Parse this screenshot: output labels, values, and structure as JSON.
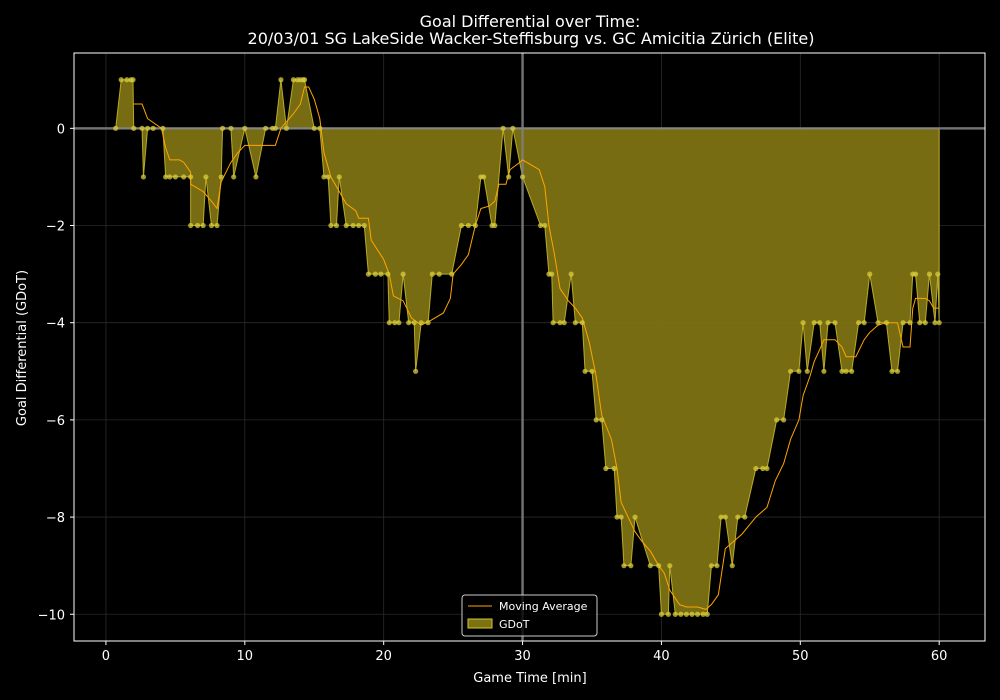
{
  "chart_data": {
    "type": "area",
    "title_line1": "Goal Differential over Time:",
    "title_line2": "20/03/01 SG LakeSide Wacker-Steffisburg  vs.  GC Amicitia Zürich (Elite)",
    "xlabel": "Game Time [min]",
    "ylabel": "Goal Differential (GDoT)",
    "xlim": [
      -2.3,
      63.3
    ],
    "ylim": [
      -10.55,
      1.55
    ],
    "x_ticks": [
      0,
      10,
      20,
      30,
      40,
      50,
      60
    ],
    "y_ticks": [
      0,
      -2,
      -4,
      -6,
      -8,
      -10
    ],
    "y_tick_labels": [
      "0",
      "−2",
      "−4",
      "−6",
      "−8",
      "−10"
    ],
    "x_tick_labels": [
      "0",
      "10",
      "20",
      "30",
      "40",
      "50",
      "60"
    ],
    "grid": true,
    "zero_line": true,
    "halftime_line_x": 30,
    "legend_position": "bottom-center",
    "colors": {
      "background": "#000000",
      "fill": "#7d7212",
      "fill_edge": "#d4c531",
      "points": "#d8cc3c",
      "moving_average": "#ffa500",
      "grid": "#2a2a2a",
      "axes": "#ffffff",
      "reference_lines": "#808080"
    },
    "series": [
      {
        "name": "GDoT",
        "points": [
          [
            0.7,
            0
          ],
          [
            1.1,
            1
          ],
          [
            1.5,
            1
          ],
          [
            1.8,
            1
          ],
          [
            1.95,
            1
          ],
          [
            2.0,
            0
          ],
          [
            2.6,
            0
          ],
          [
            2.7,
            -1
          ],
          [
            3.0,
            0
          ],
          [
            3.4,
            0
          ],
          [
            4.1,
            0
          ],
          [
            4.3,
            -1
          ],
          [
            4.6,
            -1
          ],
          [
            5.0,
            -1
          ],
          [
            5.6,
            -1
          ],
          [
            6.1,
            -1
          ],
          [
            6.1,
            -2
          ],
          [
            6.6,
            -2
          ],
          [
            7.0,
            -2
          ],
          [
            7.2,
            -1
          ],
          [
            7.6,
            -2
          ],
          [
            8.0,
            -2
          ],
          [
            8.3,
            -1
          ],
          [
            8.4,
            0
          ],
          [
            9.0,
            0
          ],
          [
            9.2,
            -1
          ],
          [
            10.0,
            0
          ],
          [
            10.8,
            -1
          ],
          [
            11.5,
            0
          ],
          [
            12.0,
            0
          ],
          [
            12.2,
            0
          ],
          [
            12.6,
            1
          ],
          [
            13.0,
            0
          ],
          [
            13.5,
            1
          ],
          [
            13.8,
            1
          ],
          [
            14.0,
            1
          ],
          [
            14.2,
            1
          ],
          [
            14.3,
            1
          ],
          [
            15.0,
            0
          ],
          [
            15.4,
            0
          ],
          [
            15.7,
            -1
          ],
          [
            16.0,
            -1
          ],
          [
            16.2,
            -2
          ],
          [
            16.6,
            -2
          ],
          [
            16.8,
            -1
          ],
          [
            17.3,
            -2
          ],
          [
            17.8,
            -2
          ],
          [
            18.2,
            -2
          ],
          [
            18.6,
            -2
          ],
          [
            18.9,
            -3
          ],
          [
            19.4,
            -3
          ],
          [
            19.8,
            -3
          ],
          [
            20.3,
            -3
          ],
          [
            20.4,
            -4
          ],
          [
            20.8,
            -4
          ],
          [
            21.1,
            -4
          ],
          [
            21.4,
            -3
          ],
          [
            21.8,
            -4
          ],
          [
            22.2,
            -4
          ],
          [
            22.3,
            -5
          ],
          [
            22.7,
            -4
          ],
          [
            23.2,
            -4
          ],
          [
            23.5,
            -3
          ],
          [
            24.0,
            -3
          ],
          [
            24.9,
            -3
          ],
          [
            25.6,
            -2
          ],
          [
            26.1,
            -2
          ],
          [
            26.6,
            -2
          ],
          [
            27.0,
            -1
          ],
          [
            27.2,
            -1
          ],
          [
            27.8,
            -2
          ],
          [
            28.0,
            -2
          ],
          [
            28.6,
            0
          ],
          [
            29.0,
            -1
          ],
          [
            29.3,
            0
          ],
          [
            30.0,
            -1
          ],
          [
            31.3,
            -2
          ],
          [
            31.6,
            -2
          ],
          [
            31.9,
            -3
          ],
          [
            32.1,
            -3
          ],
          [
            32.2,
            -4
          ],
          [
            32.7,
            -4
          ],
          [
            33.0,
            -4
          ],
          [
            33.5,
            -3
          ],
          [
            33.8,
            -4
          ],
          [
            34.3,
            -4
          ],
          [
            34.5,
            -5
          ],
          [
            35.0,
            -5
          ],
          [
            35.3,
            -6
          ],
          [
            35.7,
            -6
          ],
          [
            36.0,
            -7
          ],
          [
            36.6,
            -7
          ],
          [
            36.8,
            -8
          ],
          [
            37.1,
            -8
          ],
          [
            37.3,
            -9
          ],
          [
            37.8,
            -9
          ],
          [
            38.1,
            -8
          ],
          [
            39.2,
            -9
          ],
          [
            39.8,
            -9
          ],
          [
            40.0,
            -10
          ],
          [
            40.5,
            -10
          ],
          [
            40.6,
            -9
          ],
          [
            41.0,
            -10
          ],
          [
            41.4,
            -10
          ],
          [
            41.8,
            -10
          ],
          [
            42.2,
            -10
          ],
          [
            42.6,
            -10
          ],
          [
            43.0,
            -10
          ],
          [
            43.3,
            -10
          ],
          [
            43.6,
            -9
          ],
          [
            44.0,
            -9
          ],
          [
            44.3,
            -8
          ],
          [
            44.6,
            -8
          ],
          [
            45.1,
            -9
          ],
          [
            45.5,
            -8
          ],
          [
            46.0,
            -8
          ],
          [
            46.8,
            -7
          ],
          [
            47.3,
            -7
          ],
          [
            47.6,
            -7
          ],
          [
            48.3,
            -6
          ],
          [
            48.8,
            -6
          ],
          [
            49.3,
            -5
          ],
          [
            49.9,
            -5
          ],
          [
            50.2,
            -4
          ],
          [
            50.5,
            -5
          ],
          [
            51.0,
            -4
          ],
          [
            51.4,
            -4
          ],
          [
            51.7,
            -5
          ],
          [
            52.0,
            -4
          ],
          [
            52.5,
            -4
          ],
          [
            53.0,
            -5
          ],
          [
            53.3,
            -5
          ],
          [
            53.7,
            -5
          ],
          [
            54.2,
            -4
          ],
          [
            54.6,
            -4
          ],
          [
            55.0,
            -3
          ],
          [
            55.6,
            -4
          ],
          [
            56.2,
            -4
          ],
          [
            56.6,
            -5
          ],
          [
            57.0,
            -5
          ],
          [
            57.4,
            -4
          ],
          [
            57.9,
            -4
          ],
          [
            58.1,
            -3
          ],
          [
            58.3,
            -3
          ],
          [
            58.6,
            -4
          ],
          [
            59.0,
            -4
          ],
          [
            59.3,
            -3
          ],
          [
            59.7,
            -4
          ],
          [
            59.9,
            -3
          ],
          [
            60.0,
            -4
          ]
        ]
      },
      {
        "name": "Moving Average",
        "points": [
          [
            2.0,
            0.5
          ],
          [
            2.6,
            0.5
          ],
          [
            3.0,
            0.2
          ],
          [
            4.0,
            0.0
          ],
          [
            4.3,
            -0.4
          ],
          [
            4.6,
            -0.65
          ],
          [
            5.3,
            -0.65
          ],
          [
            5.6,
            -0.7
          ],
          [
            6.1,
            -0.9
          ],
          [
            6.1,
            -1.15
          ],
          [
            7.0,
            -1.3
          ],
          [
            7.6,
            -1.5
          ],
          [
            8.0,
            -1.65
          ],
          [
            8.3,
            -1.1
          ],
          [
            9.0,
            -0.7
          ],
          [
            9.5,
            -0.5
          ],
          [
            10.0,
            -0.35
          ],
          [
            11.0,
            -0.35
          ],
          [
            12.2,
            -0.35
          ],
          [
            12.6,
            0.0
          ],
          [
            13.5,
            0.3
          ],
          [
            14.0,
            0.5
          ],
          [
            14.3,
            0.85
          ],
          [
            14.6,
            0.85
          ],
          [
            15.0,
            0.6
          ],
          [
            15.4,
            0.2
          ],
          [
            15.7,
            -0.5
          ],
          [
            16.2,
            -1.0
          ],
          [
            16.8,
            -1.3
          ],
          [
            17.3,
            -1.55
          ],
          [
            18.0,
            -1.7
          ],
          [
            18.2,
            -1.85
          ],
          [
            18.9,
            -1.85
          ],
          [
            19.1,
            -2.3
          ],
          [
            20.0,
            -2.7
          ],
          [
            20.4,
            -3.0
          ],
          [
            20.7,
            -3.45
          ],
          [
            21.4,
            -3.55
          ],
          [
            22.0,
            -3.9
          ],
          [
            22.7,
            -4.05
          ],
          [
            23.4,
            -3.95
          ],
          [
            24.3,
            -3.8
          ],
          [
            24.8,
            -3.5
          ],
          [
            25.0,
            -3.0
          ],
          [
            25.6,
            -2.8
          ],
          [
            26.1,
            -2.6
          ],
          [
            26.6,
            -2.0
          ],
          [
            27.0,
            -1.65
          ],
          [
            27.6,
            -1.6
          ],
          [
            28.0,
            -1.5
          ],
          [
            28.3,
            -1.15
          ],
          [
            28.8,
            -1.15
          ],
          [
            29.1,
            -0.85
          ],
          [
            29.8,
            -0.7
          ],
          [
            30.0,
            -0.65
          ],
          [
            30.6,
            -0.75
          ],
          [
            31.2,
            -0.85
          ],
          [
            31.6,
            -1.2
          ],
          [
            31.9,
            -2.0
          ],
          [
            32.3,
            -2.6
          ],
          [
            32.7,
            -3.3
          ],
          [
            33.3,
            -3.55
          ],
          [
            33.8,
            -3.7
          ],
          [
            34.3,
            -3.9
          ],
          [
            34.8,
            -4.4
          ],
          [
            35.3,
            -5.1
          ],
          [
            35.7,
            -5.9
          ],
          [
            36.4,
            -6.4
          ],
          [
            36.8,
            -7.0
          ],
          [
            37.1,
            -7.7
          ],
          [
            37.6,
            -8.0
          ],
          [
            38.1,
            -8.3
          ],
          [
            38.6,
            -8.5
          ],
          [
            39.2,
            -8.7
          ],
          [
            39.8,
            -9.0
          ],
          [
            40.2,
            -9.15
          ],
          [
            40.6,
            -9.5
          ],
          [
            41.3,
            -9.8
          ],
          [
            41.8,
            -9.85
          ],
          [
            42.6,
            -9.85
          ],
          [
            43.2,
            -9.9
          ],
          [
            43.6,
            -9.8
          ],
          [
            44.1,
            -9.6
          ],
          [
            44.6,
            -8.65
          ],
          [
            45.0,
            -8.55
          ],
          [
            45.8,
            -8.35
          ],
          [
            46.8,
            -8.0
          ],
          [
            47.6,
            -7.8
          ],
          [
            48.2,
            -7.25
          ],
          [
            48.8,
            -6.9
          ],
          [
            49.3,
            -6.4
          ],
          [
            49.9,
            -6.0
          ],
          [
            50.2,
            -5.5
          ],
          [
            50.7,
            -5.1
          ],
          [
            51.0,
            -4.8
          ],
          [
            51.4,
            -4.55
          ],
          [
            51.7,
            -4.35
          ],
          [
            52.5,
            -4.35
          ],
          [
            53.0,
            -4.5
          ],
          [
            53.3,
            -4.7
          ],
          [
            54.0,
            -4.7
          ],
          [
            54.6,
            -4.35
          ],
          [
            55.0,
            -4.2
          ],
          [
            55.6,
            -4.05
          ],
          [
            56.2,
            -4.0
          ],
          [
            56.6,
            -4.0
          ],
          [
            57.0,
            -4.0
          ],
          [
            57.4,
            -4.5
          ],
          [
            57.9,
            -4.5
          ],
          [
            58.1,
            -3.7
          ],
          [
            58.3,
            -3.5
          ],
          [
            58.6,
            -3.5
          ],
          [
            59.0,
            -3.5
          ],
          [
            59.3,
            -3.55
          ],
          [
            59.6,
            -3.7
          ],
          [
            60.0,
            -3.7
          ]
        ]
      }
    ]
  }
}
